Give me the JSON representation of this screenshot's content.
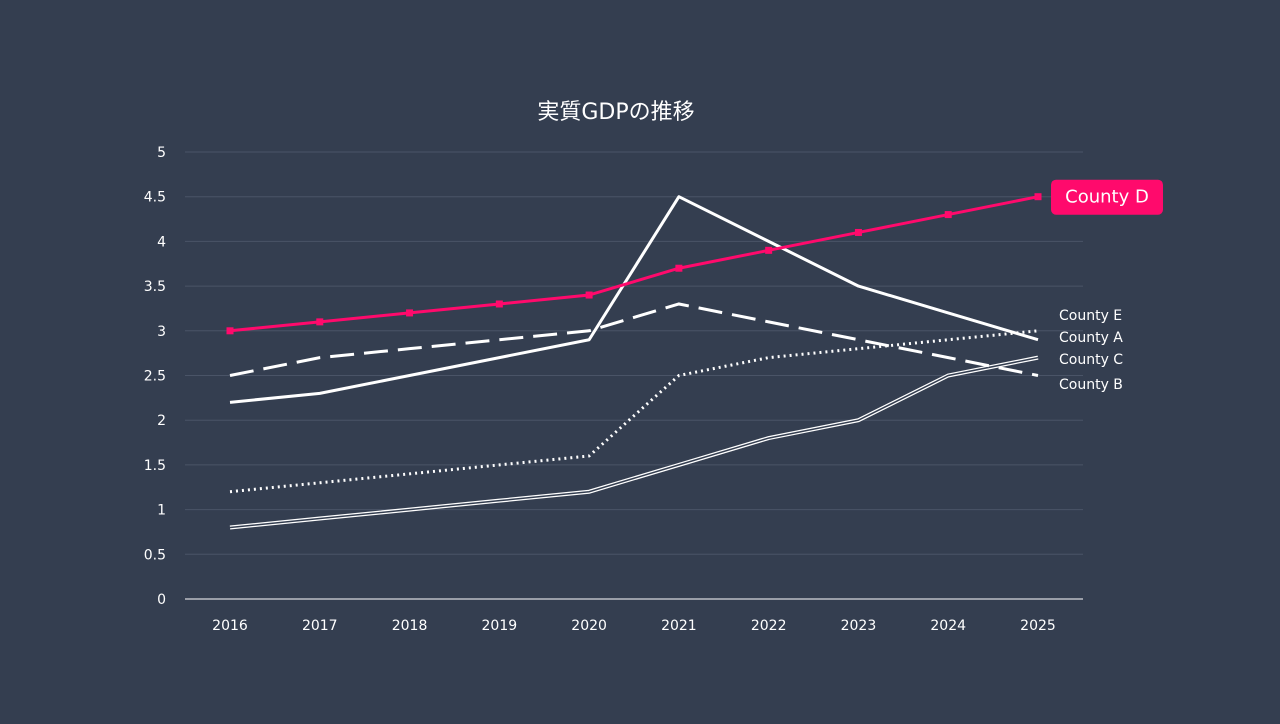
{
  "chart_data": {
    "type": "line",
    "title": "実質GDPの推移",
    "xlabel": "",
    "ylabel": "",
    "ylim": [
      0,
      5
    ],
    "yticks": [
      "0",
      "0.5",
      "1",
      "1.5",
      "2",
      "2.5",
      "3",
      "3.5",
      "4",
      "4.5",
      "5"
    ],
    "categories": [
      "2016",
      "2017",
      "2018",
      "2019",
      "2020",
      "2021",
      "2022",
      "2023",
      "2024",
      "2025"
    ],
    "grid": true,
    "legend": "direct labels at line ends (right)",
    "series": [
      {
        "name": "County A",
        "style": "solid",
        "color": "#ffffff",
        "values": [
          2.2,
          2.3,
          2.5,
          2.7,
          2.9,
          4.5,
          4.0,
          3.5,
          3.2,
          2.9
        ]
      },
      {
        "name": "County E",
        "style": "dotted",
        "color": "#ffffff",
        "values": [
          1.2,
          1.3,
          1.4,
          1.5,
          1.6,
          2.5,
          2.7,
          2.8,
          2.9,
          3.0
        ]
      },
      {
        "name": "County C",
        "style": "double",
        "color": "#ffffff",
        "values": [
          0.8,
          0.9,
          1.0,
          1.1,
          1.2,
          1.5,
          1.8,
          2.0,
          2.5,
          2.7
        ]
      },
      {
        "name": "County B",
        "style": "dashed",
        "color": "#ffffff",
        "values": [
          2.5,
          2.7,
          2.8,
          2.9,
          3.0,
          3.3,
          3.1,
          2.9,
          2.7,
          2.5
        ]
      },
      {
        "name": "County D",
        "style": "highlight",
        "color": "#ff0a6c",
        "values": [
          3.0,
          3.1,
          3.2,
          3.3,
          3.4,
          3.7,
          3.9,
          4.1,
          4.3,
          4.5
        ]
      }
    ]
  },
  "colors": {
    "background": "#343e50",
    "grid": "#4a5467",
    "axis": "#ffffff",
    "text": "#ffffff",
    "accent": "#ff0a6c"
  }
}
